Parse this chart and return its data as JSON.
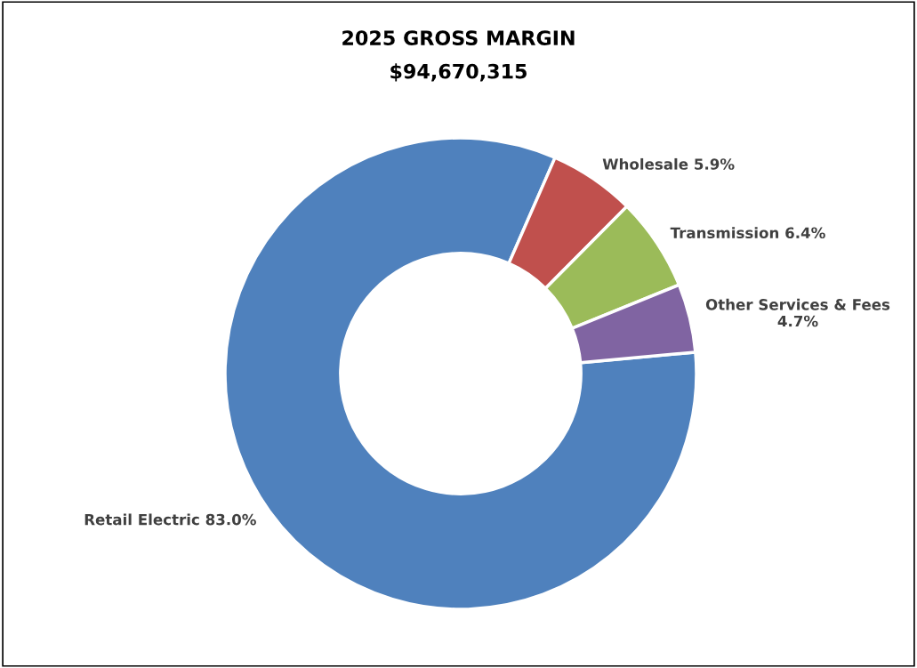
{
  "chart_data": {
    "type": "donut",
    "title": "2025 GROSS MARGIN",
    "subtitle": "$94,670,315",
    "categories": [
      "Retail Electric",
      "Wholesale",
      "Transmission",
      "Other Services & Fees"
    ],
    "values": [
      83.0,
      5.9,
      6.4,
      4.7
    ],
    "value_labels": [
      "83.0%",
      "5.9%",
      "6.4%",
      "4.7%"
    ],
    "colors": [
      "#4f81bd",
      "#c0504d",
      "#9bbb59",
      "#8064a2"
    ],
    "legend": false
  }
}
